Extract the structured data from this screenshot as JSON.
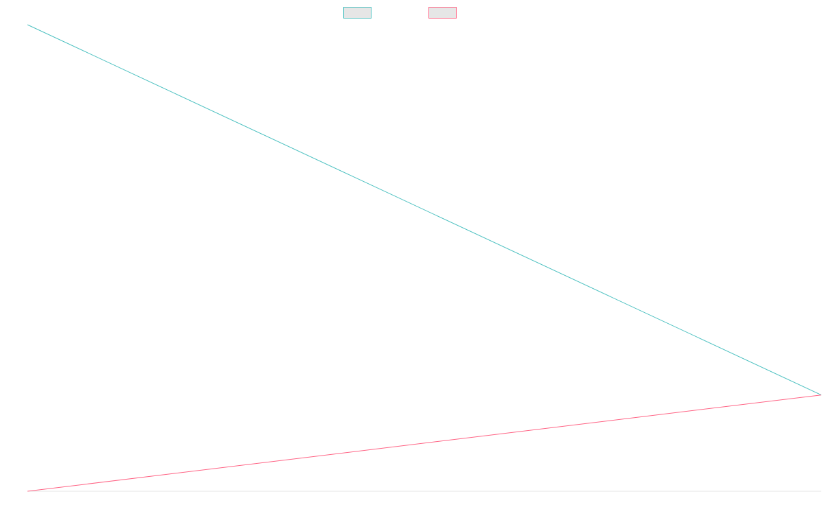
{
  "chart_data": {
    "type": "line",
    "title": "",
    "xlabel": "",
    "ylabel": "",
    "grid": false,
    "legend": {
      "placement": "top-center"
    },
    "x": [
      0,
      1
    ],
    "series": [
      {
        "name": "",
        "color": "#4bc0c0",
        "fill": "#e6e6e6",
        "values": [
          100,
          0
        ]
      },
      {
        "name": "",
        "color": "#ff6384",
        "fill": "#e6e6e6",
        "values": [
          -26,
          0
        ]
      }
    ],
    "xlim": [
      0,
      1
    ],
    "ylim": [
      -26,
      100
    ]
  }
}
